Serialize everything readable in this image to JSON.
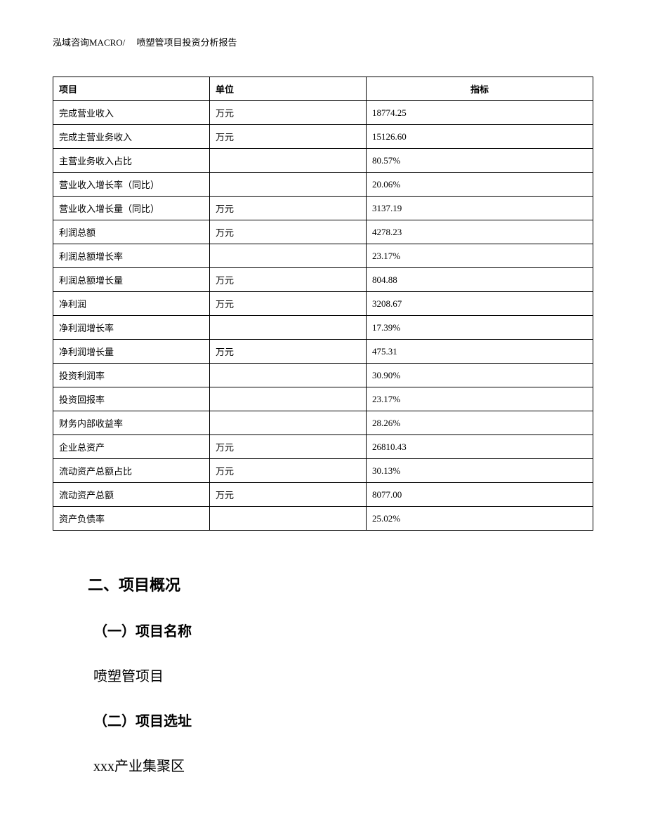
{
  "header": "泓域咨询MACRO/　 喷塑管项目投资分析报告",
  "table": {
    "columns": [
      "项目",
      "单位",
      "指标"
    ],
    "rows": [
      [
        "完成营业收入",
        "万元",
        "18774.25"
      ],
      [
        "完成主营业务收入",
        "万元",
        "15126.60"
      ],
      [
        "主营业务收入占比",
        "",
        "80.57%"
      ],
      [
        "营业收入增长率（同比）",
        "",
        "20.06%"
      ],
      [
        "营业收入增长量（同比）",
        "万元",
        "3137.19"
      ],
      [
        "利润总额",
        "万元",
        "4278.23"
      ],
      [
        "利润总额增长率",
        "",
        "23.17%"
      ],
      [
        "利润总额增长量",
        "万元",
        "804.88"
      ],
      [
        "净利润",
        "万元",
        "3208.67"
      ],
      [
        "净利润增长率",
        "",
        "17.39%"
      ],
      [
        "净利润增长量",
        "万元",
        "475.31"
      ],
      [
        "投资利润率",
        "",
        "30.90%"
      ],
      [
        "投资回报率",
        "",
        "23.17%"
      ],
      [
        "财务内部收益率",
        "",
        "28.26%"
      ],
      [
        "企业总资产",
        "万元",
        "26810.43"
      ],
      [
        "流动资产总额占比",
        "万元",
        "30.13%"
      ],
      [
        "流动资产总额",
        "万元",
        "8077.00"
      ],
      [
        "资产负债率",
        "",
        "25.02%"
      ]
    ]
  },
  "sections": {
    "heading2": "二、项目概况",
    "sub1_heading": "（一）项目名称",
    "sub1_body": "喷塑管项目",
    "sub2_heading": "（二）项目选址",
    "sub2_body": "xxx产业集聚区"
  }
}
